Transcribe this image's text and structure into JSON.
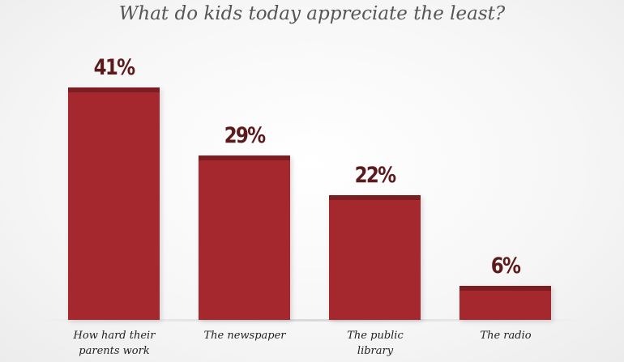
{
  "chart_data": {
    "type": "bar",
    "title": "What do kids today appreciate the least?",
    "categories": [
      "How hard their parents work",
      "The newspaper",
      "The public library",
      "The radio"
    ],
    "values": [
      41,
      29,
      22,
      6
    ],
    "value_labels": [
      "41%",
      "29%",
      "22%",
      "6%"
    ],
    "color": "#a4282d"
  }
}
